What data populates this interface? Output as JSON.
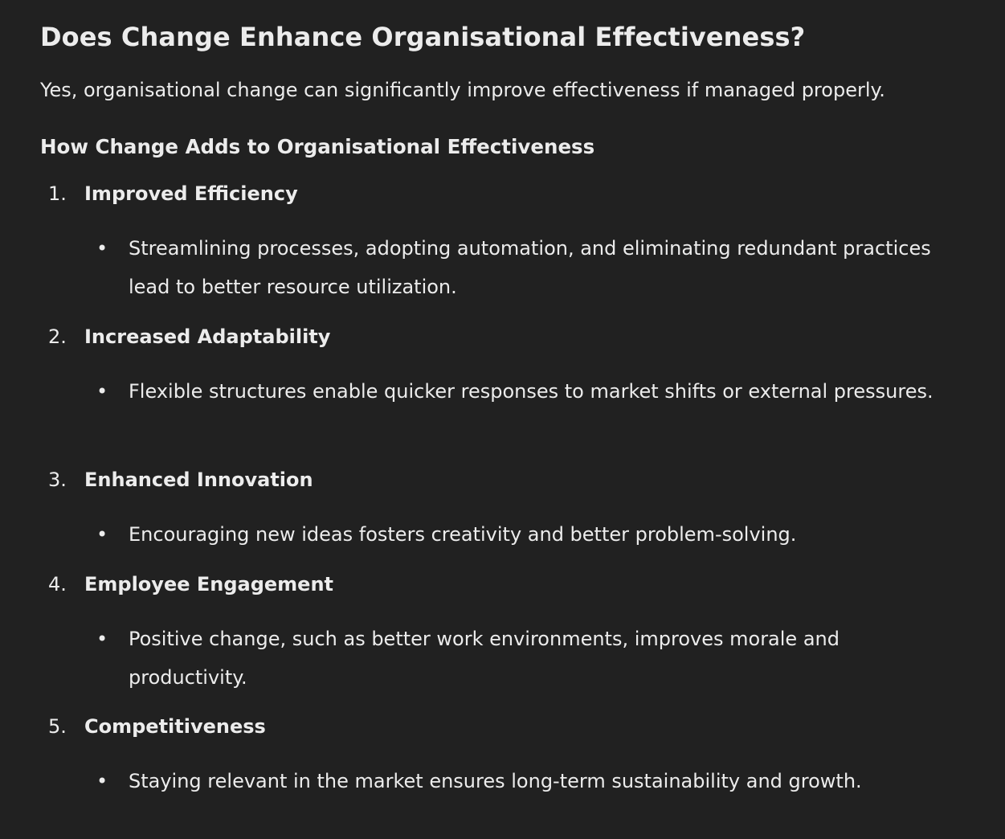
{
  "title": "Does Change Enhance Organisational Effectiveness?",
  "intro": "Yes, organisational change can significantly improve effectiveness if managed properly.",
  "section_heading": "How Change Adds to Organisational Effectiveness",
  "items": [
    {
      "number": "1.",
      "title": "Improved Efficiency",
      "bullet": "Streamlining processes, adopting automation, and eliminating redundant practices lead to better resource utilization."
    },
    {
      "number": "2.",
      "title": "Increased Adaptability",
      "bullet": "Flexible structures enable quicker responses to market shifts or external pressures."
    },
    {
      "number": "3.",
      "title": "Enhanced Innovation",
      "bullet": "Encouraging new ideas fosters creativity and better problem-solving."
    },
    {
      "number": "4.",
      "title": "Employee Engagement",
      "bullet": "Positive change, such as better work environments, improves morale and productivity."
    },
    {
      "number": "5.",
      "title": "Competitiveness",
      "bullet": "Staying relevant in the market ensures long-term sustainability and growth."
    }
  ]
}
